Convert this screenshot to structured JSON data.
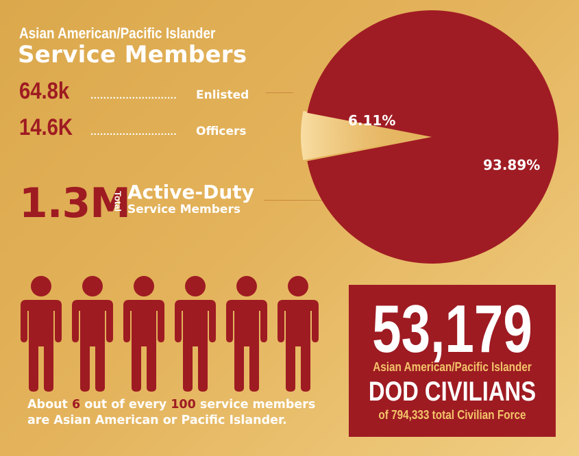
{
  "header": {
    "title_line1": "Asian American/Pacific Islander",
    "title_line2": "Service Members"
  },
  "stats": [
    {
      "value": "64.8k",
      "dots": "...........................",
      "label": "Enlisted"
    },
    {
      "value": "14.6K",
      "dots": "...........................",
      "label": "Officers"
    }
  ],
  "total": {
    "value": "1.3M",
    "vertical_label": "Total",
    "label_line1": "Active-Duty",
    "label_line2": "Service Members"
  },
  "chart_data": {
    "type": "pie",
    "slices": [
      {
        "label": "6.11%",
        "value": 6.11,
        "color": "#f6d58f"
      },
      {
        "label": "93.89%",
        "value": 93.89,
        "color": "#a01c24"
      }
    ]
  },
  "people": {
    "count": 6,
    "color": "#9e1b22"
  },
  "caption": {
    "l1_pre": "About ",
    "l1_num1": "6",
    "l1_mid": " out of every ",
    "l1_num2": "100",
    "l1_post": " service members",
    "line2": "are Asian American or Pacific Islander."
  },
  "civilians": {
    "number": "53,179",
    "line1": "Asian American/Pacific Islander",
    "line2": "DOD CIVILIANS",
    "line3": "of 794,333 total Civilian Force"
  },
  "colors": {
    "accent": "#9e1b22",
    "background": "#e3b25a",
    "highlight": "#f4c46a"
  }
}
